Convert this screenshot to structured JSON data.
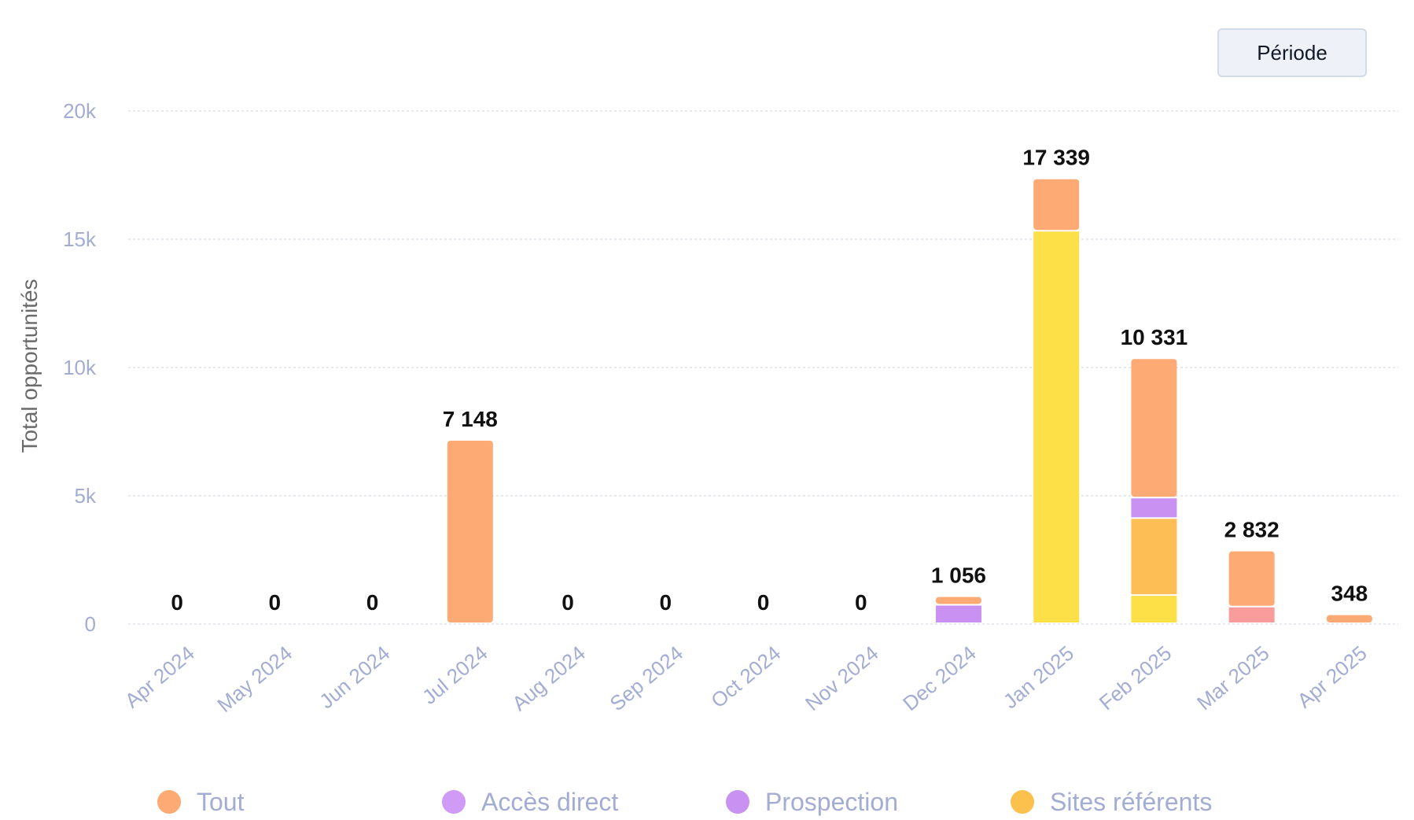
{
  "toolbar": {
    "period_label": "Période"
  },
  "chart_data": {
    "type": "bar",
    "stacked": true,
    "ylabel": "Total opportunités",
    "ylim": [
      0,
      20000
    ],
    "yticks": [
      0,
      5000,
      10000,
      15000,
      20000
    ],
    "ytick_labels": [
      "0",
      "5k",
      "10k",
      "15k",
      "20k"
    ],
    "grid": true,
    "legend": "bottom",
    "categories": [
      "Apr 2024",
      "May 2024",
      "Jun 2024",
      "Jul 2024",
      "Aug 2024",
      "Sep 2024",
      "Oct 2024",
      "Nov 2024",
      "Dec 2024",
      "Jan 2025",
      "Feb 2025",
      "Mar 2025",
      "Apr 2025"
    ],
    "total_labels": [
      "0",
      "0",
      "0",
      "7 148",
      "0",
      "0",
      "0",
      "0",
      "1 056",
      "17 339",
      "10 331",
      "2 832",
      "348"
    ],
    "segments": [
      {
        "color": "#fde047",
        "values": [
          0,
          0,
          0,
          0,
          0,
          0,
          0,
          0,
          0,
          15300,
          1100,
          0,
          0
        ]
      },
      {
        "color": "#fcbe55",
        "values": [
          0,
          0,
          0,
          0,
          0,
          0,
          0,
          0,
          0,
          0,
          3000,
          0,
          0
        ]
      },
      {
        "color": "#c891f2",
        "values": [
          0,
          0,
          0,
          0,
          0,
          0,
          0,
          0,
          720,
          0,
          800,
          0,
          0
        ]
      },
      {
        "color": "#fb9c9c",
        "values": [
          0,
          0,
          0,
          0,
          0,
          0,
          0,
          0,
          0,
          0,
          0,
          650,
          0
        ]
      },
      {
        "color": "#fdaa74",
        "values": [
          0,
          0,
          0,
          7148,
          0,
          0,
          0,
          0,
          336,
          2039,
          5431,
          2182,
          348
        ]
      }
    ],
    "legend_items": [
      {
        "name": "Tout",
        "color": "#fdaa74"
      },
      {
        "name": "Accès direct",
        "color": "#cf9bf6"
      },
      {
        "name": "Prospection",
        "color": "#c891f2"
      },
      {
        "name": "Sites référents",
        "color": "#fcc14c"
      }
    ]
  }
}
